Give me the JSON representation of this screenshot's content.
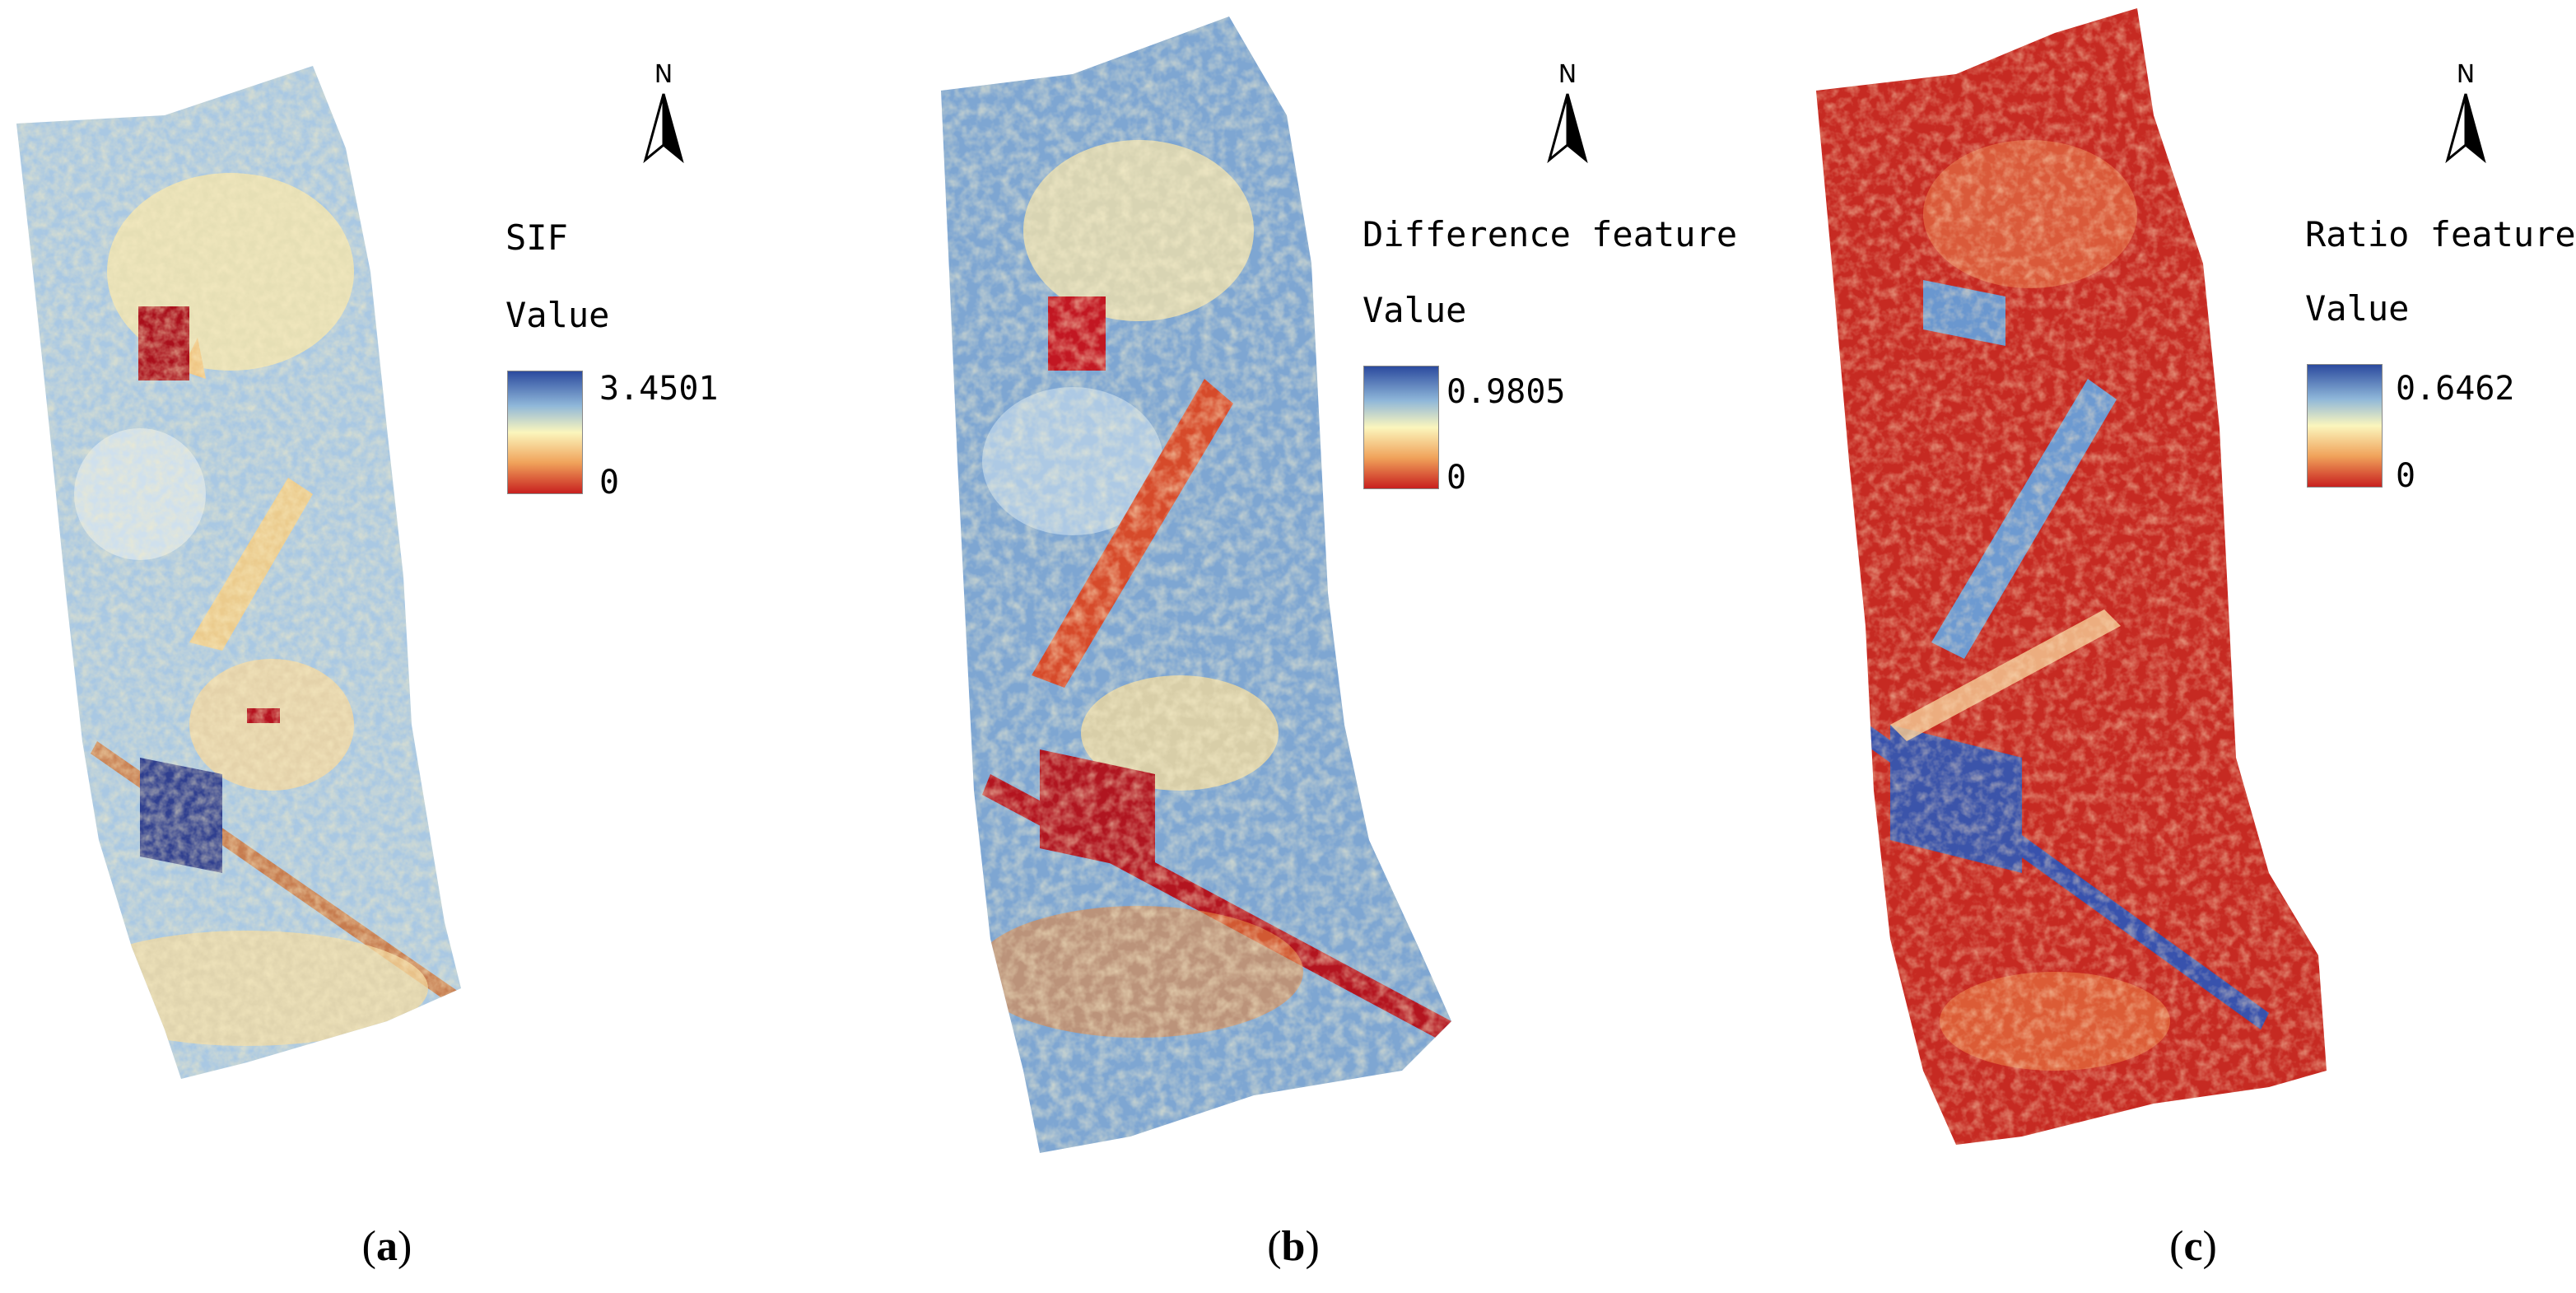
{
  "colors": {
    "ramp_high": "#3b57a8",
    "ramp_mid": "#fbf6bd",
    "ramp_low": "#c8201f",
    "icon_north": "north-arrow-icon"
  },
  "panels": [
    {
      "layer_title": "SIF",
      "value_label": "Value",
      "max": "3.4501",
      "min": "0",
      "north": "N",
      "caption_open": "(",
      "caption_letter": "a",
      "caption_close": ")"
    },
    {
      "layer_title": "Difference feature",
      "value_label": "Value",
      "max": "0.9805",
      "min": "0",
      "north": "N",
      "caption_open": "(",
      "caption_letter": "b",
      "caption_close": ")"
    },
    {
      "layer_title": "Ratio feature",
      "value_label": "Value",
      "max": "0.6462",
      "min": "0",
      "north": "N",
      "caption_open": "(",
      "caption_letter": "c",
      "caption_close": ")"
    }
  ]
}
